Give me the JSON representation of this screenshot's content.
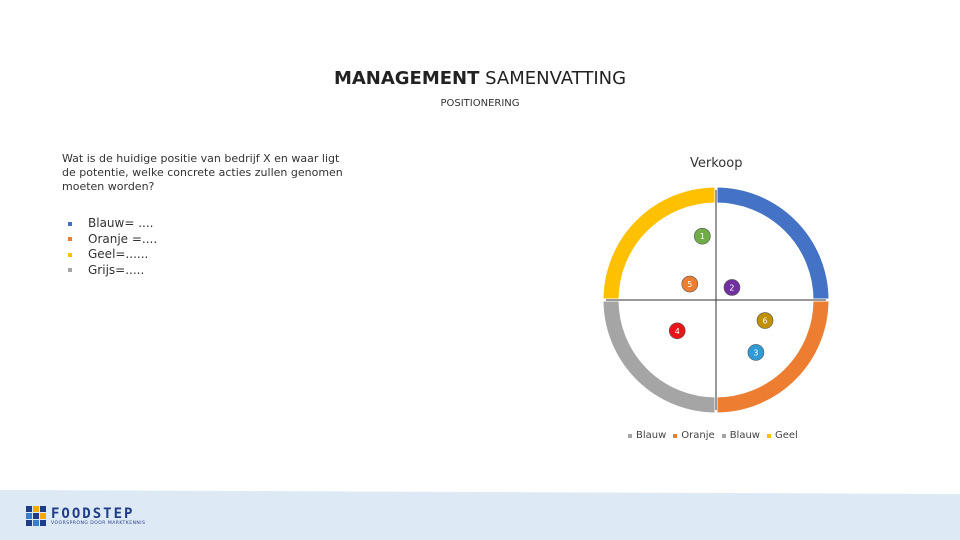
{
  "slide": {
    "title_bold": "MANAGEMENT",
    "title_rest": " SAMENVATTING",
    "subtitle": "POSITIONERING",
    "question": "Wat is de huidige positie van bedrijf X en waar ligt de potentie, welke concrete acties zullen genomen moeten worden?",
    "bullets": [
      "Blauw= ....",
      "Oranje =....",
      "Geel=......",
      "Grijs=....."
    ]
  },
  "chart_data": {
    "type": "doughnut-quadrant",
    "title": "Verkoop",
    "segments": [
      {
        "name": "Blauw",
        "color": "#4472c4",
        "value": 25
      },
      {
        "name": "Oranje",
        "color": "#ed7d31",
        "value": 25
      },
      {
        "name": "Blauw",
        "color": "#a5a5a5",
        "value": 25
      },
      {
        "name": "Geel",
        "color": "#ffc000",
        "value": 25
      }
    ],
    "markers": [
      {
        "label": "1",
        "color": "#70ad47",
        "x": -0.12,
        "y": 0.56
      },
      {
        "label": "5",
        "color": "#ed7d31",
        "x": -0.23,
        "y": 0.14
      },
      {
        "label": "2",
        "color": "#7030a0",
        "x": 0.14,
        "y": 0.11
      },
      {
        "label": "6",
        "color": "#bf9000",
        "x": 0.43,
        "y": -0.18
      },
      {
        "label": "4",
        "color": "#e8161b",
        "x": -0.34,
        "y": -0.27
      },
      {
        "label": "3",
        "color": "#2e9bd6",
        "x": 0.35,
        "y": -0.46
      }
    ]
  },
  "legend": [
    {
      "label": "Blauw",
      "color": "#a5a5a5"
    },
    {
      "label": "Oranje",
      "color": "#ed7d31"
    },
    {
      "label": "Blauw",
      "color": "#a5a5a5"
    },
    {
      "label": "Geel",
      "color": "#ffc000"
    }
  ],
  "logo": {
    "name": "FOODSTEP",
    "tagline": "VOORSPRONG DOOR MARKTKENNIS",
    "colors": [
      "#1f3c88",
      "#f2a900",
      "#1f3c88",
      "#3a7dc9",
      "#1f3c88",
      "#f2a900",
      "#1f3c88",
      "#3a7dc9",
      "#1f3c88"
    ]
  },
  "colors": {
    "footer": "#dde9f5"
  }
}
